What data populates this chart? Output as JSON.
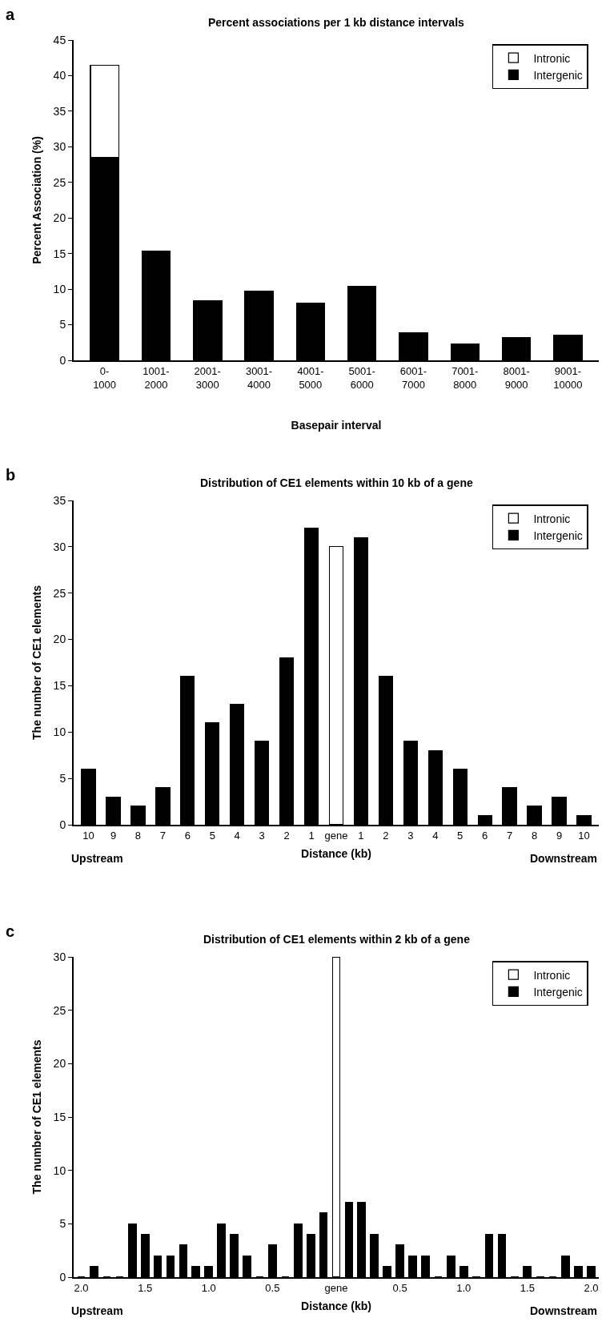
{
  "chart_data": [
    {
      "type": "bar",
      "title": "Percent associations per 1 kb distance intervals",
      "xlabel": "Basepair interval",
      "ylabel": "Percent Association (%)",
      "categories": [
        "0-1000",
        "1001-2000",
        "2001-3000",
        "3001-4000",
        "4001-5000",
        "5001-6000",
        "6001-7000",
        "7001-8000",
        "8001-9000",
        "9001-10000"
      ],
      "stacked": true,
      "series": [
        {
          "name": "Intergenic",
          "color": "#000000",
          "values": [
            28.5,
            15.4,
            8.4,
            9.7,
            8.0,
            10.4,
            3.9,
            2.3,
            3.2,
            3.5
          ]
        },
        {
          "name": "Intronic",
          "color": "#ffffff",
          "values": [
            13.0,
            null,
            null,
            null,
            null,
            null,
            null,
            null,
            null,
            null
          ]
        }
      ],
      "ylim": [
        0,
        45
      ],
      "yticks": [
        0,
        5,
        10,
        15,
        20,
        25,
        30,
        35,
        40,
        45
      ],
      "legend": "top right",
      "annotations": [
        "a"
      ]
    },
    {
      "type": "bar",
      "title": "Distribution of CE1 elements within 10 kb of a gene",
      "xlabel": "Distance (kb)",
      "ylabel": "The number of CE1 elements",
      "categories": [
        "10",
        "9",
        "8",
        "7",
        "6",
        "5",
        "4",
        "3",
        "2",
        "1",
        "gene",
        "1",
        "2",
        "3",
        "4",
        "5",
        "6",
        "7",
        "8",
        "9",
        "10"
      ],
      "series": [
        {
          "name": "Intergenic",
          "color": "#000000",
          "values": [
            6,
            3,
            2,
            4,
            16,
            11,
            13,
            9,
            18,
            32,
            null,
            31,
            16,
            9,
            8,
            6,
            1,
            4,
            2,
            3,
            1
          ]
        },
        {
          "name": "Intronic",
          "color": "#ffffff",
          "values": [
            null,
            null,
            null,
            null,
            null,
            null,
            null,
            null,
            null,
            null,
            30,
            null,
            null,
            null,
            null,
            null,
            null,
            null,
            null,
            null,
            null
          ]
        }
      ],
      "ylim": [
        0,
        35
      ],
      "yticks": [
        0,
        5,
        10,
        15,
        20,
        25,
        30,
        35
      ],
      "legend": "top right",
      "annotations": [
        "b",
        "Upstream",
        "Downstream"
      ]
    },
    {
      "type": "bar",
      "title": "Distribution of CE1 elements within 2 kb of a gene",
      "xlabel": "Distance (kb)",
      "ylabel": "The number of CE1 elements",
      "categories": [
        "2.0",
        null,
        null,
        null,
        null,
        "1.5",
        null,
        null,
        null,
        null,
        "1.0",
        null,
        null,
        null,
        null,
        "0.5",
        null,
        null,
        null,
        null,
        "gene",
        null,
        null,
        null,
        null,
        "0.5",
        null,
        null,
        null,
        null,
        "1.0",
        null,
        null,
        null,
        null,
        "1.5",
        null,
        null,
        null,
        null,
        "2.0"
      ],
      "series": [
        {
          "name": "Intergenic",
          "color": "#000000",
          "values": [
            0,
            1,
            0,
            0,
            5,
            4,
            2,
            2,
            3,
            1,
            1,
            5,
            4,
            2,
            0,
            3,
            0,
            5,
            4,
            6,
            null,
            7,
            7,
            4,
            1,
            3,
            2,
            2,
            0,
            2,
            1,
            0,
            4,
            4,
            0,
            1,
            0,
            0,
            2,
            1,
            1
          ]
        },
        {
          "name": "Intronic",
          "color": "#ffffff",
          "values": [
            null,
            null,
            null,
            null,
            null,
            null,
            null,
            null,
            null,
            null,
            null,
            null,
            null,
            null,
            null,
            null,
            null,
            null,
            null,
            null,
            30,
            null,
            null,
            null,
            null,
            null,
            null,
            null,
            null,
            null,
            null,
            null,
            null,
            null,
            null,
            null,
            null,
            null,
            null,
            null,
            null
          ]
        }
      ],
      "ylim": [
        0,
        30
      ],
      "yticks": [
        0,
        5,
        10,
        15,
        20,
        25,
        30
      ],
      "legend": "top right",
      "annotations": [
        "c",
        "Upstream",
        "Downstream"
      ]
    }
  ]
}
